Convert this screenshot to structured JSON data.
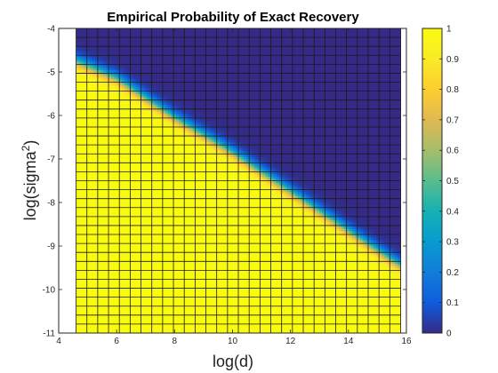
{
  "chart_data": {
    "type": "heatmap",
    "title": "Empirical Probability of Exact Recovery",
    "xlabel": "log(d)",
    "ylabel_main": "log(sigma",
    "ylabel_sup": "2",
    "ylabel_close": ")",
    "xlim": [
      4,
      16
    ],
    "ylim": [
      -11,
      -4
    ],
    "x_ticks": [
      "4",
      "6",
      "8",
      "10",
      "12",
      "14",
      "16"
    ],
    "y_ticks": [
      "-11",
      "-10",
      "-9",
      "-8",
      "-7",
      "-6",
      "-5",
      "-4"
    ],
    "x_tick_values": [
      4,
      6,
      8,
      10,
      12,
      14,
      16
    ],
    "y_tick_values": [
      -11,
      -10,
      -9,
      -8,
      -7,
      -6,
      -5,
      -4
    ],
    "colorbar_ticks": [
      "0",
      "0.1",
      "0.2",
      "0.3",
      "0.4",
      "0.5",
      "0.6",
      "0.7",
      "0.8",
      "0.9",
      "1"
    ],
    "colorbar_tick_values": [
      0,
      0.1,
      0.2,
      0.3,
      0.4,
      0.5,
      0.6,
      0.7,
      0.8,
      0.9,
      1
    ],
    "colormap": "parula",
    "grid_x": [
      4.6,
      15.8
    ],
    "grid_y": [
      -11,
      -4
    ],
    "n_cols": 30,
    "n_rows": 34,
    "boundary_log_sigma2": [
      [
        4.6,
        -4.75
      ],
      [
        6.0,
        -5.15
      ],
      [
        8.0,
        -6.05
      ],
      [
        10.0,
        -6.85
      ],
      [
        12.0,
        -7.75
      ],
      [
        14.0,
        -8.65
      ],
      [
        15.8,
        -9.45
      ]
    ],
    "transition_width": 0.09,
    "empty_band_below": -4.25
  }
}
